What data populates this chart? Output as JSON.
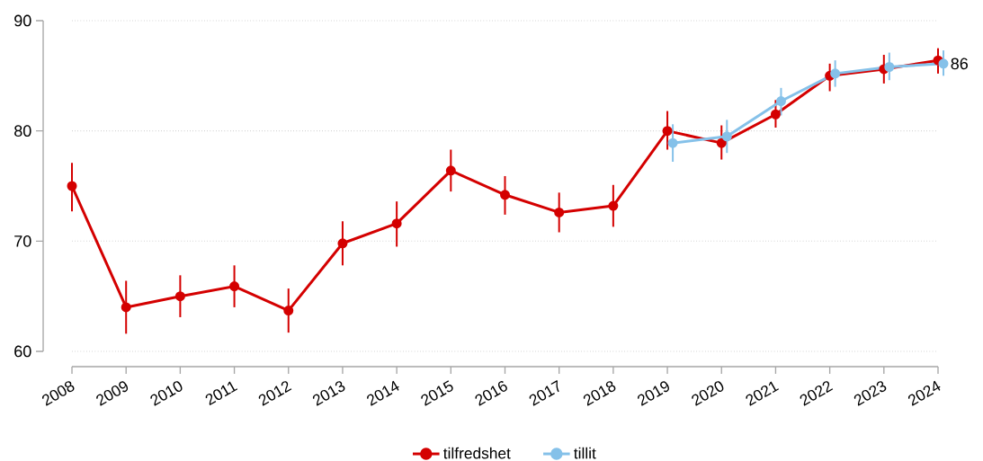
{
  "chart_data": {
    "type": "line",
    "categories": [
      "2008",
      "2009",
      "2010",
      "2011",
      "2012",
      "2013",
      "2014",
      "2015",
      "2016",
      "2017",
      "2018",
      "2019",
      "2020",
      "2021",
      "2022",
      "2023",
      "2024"
    ],
    "series": [
      {
        "name": "tilfredshet",
        "color": "#d40000",
        "values": [
          75.0,
          64.0,
          65.0,
          65.9,
          63.7,
          69.8,
          71.6,
          76.4,
          74.2,
          72.6,
          73.2,
          80.0,
          78.9,
          81.5,
          85.0,
          85.6,
          86.4
        ],
        "errors": [
          [
            72.7,
            77.1
          ],
          [
            61.6,
            66.4
          ],
          [
            63.1,
            66.9
          ],
          [
            64.0,
            67.8
          ],
          [
            61.7,
            65.7
          ],
          [
            67.8,
            71.8
          ],
          [
            69.5,
            73.6
          ],
          [
            74.5,
            78.3
          ],
          [
            72.4,
            75.9
          ],
          [
            70.8,
            74.4
          ],
          [
            71.3,
            75.1
          ],
          [
            78.3,
            81.8
          ],
          [
            77.4,
            80.5
          ],
          [
            80.3,
            82.8
          ],
          [
            83.6,
            86.1
          ],
          [
            84.3,
            86.9
          ],
          [
            85.2,
            87.5
          ]
        ]
      },
      {
        "name": "tillit",
        "color": "#85c1e9",
        "values": [
          null,
          null,
          null,
          null,
          null,
          null,
          null,
          null,
          null,
          null,
          null,
          78.9,
          79.5,
          82.7,
          85.2,
          85.8,
          86.1
        ],
        "errors": [
          null,
          null,
          null,
          null,
          null,
          null,
          null,
          null,
          null,
          null,
          null,
          [
            77.2,
            80.6
          ],
          [
            78.0,
            81.0
          ],
          [
            81.4,
            83.9
          ],
          [
            84.0,
            86.4
          ],
          [
            84.6,
            87.1
          ],
          [
            85.0,
            87.3
          ]
        ],
        "value_labels": [
          null,
          null,
          null,
          null,
          null,
          null,
          null,
          null,
          null,
          null,
          null,
          null,
          null,
          null,
          null,
          null,
          "86"
        ]
      }
    ],
    "ylim": [
      60,
      90
    ],
    "yticks": [
      60,
      70,
      80,
      90
    ],
    "grid": "y",
    "legend": "bottom",
    "marker": "circle",
    "line_style": "solid"
  }
}
